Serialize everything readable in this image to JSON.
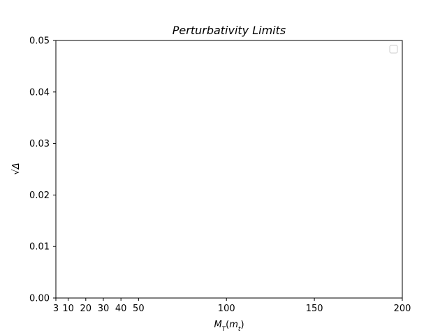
{
  "chart_data": {
    "type": "line",
    "title": "Perturbativity Limits",
    "xlabel": "M_T(m_t)",
    "ylabel": "√Δ",
    "xlim": [
      3,
      200
    ],
    "ylim": [
      0.0,
      0.05
    ],
    "x_ticks": [
      3,
      10,
      20,
      30,
      40,
      50,
      100,
      150,
      200
    ],
    "y_ticks": [
      "0.00",
      "0.01",
      "0.02",
      "0.03",
      "0.04",
      "0.05"
    ],
    "series": [],
    "legend": {
      "placement": "top-right",
      "entries": []
    },
    "grid": false
  }
}
